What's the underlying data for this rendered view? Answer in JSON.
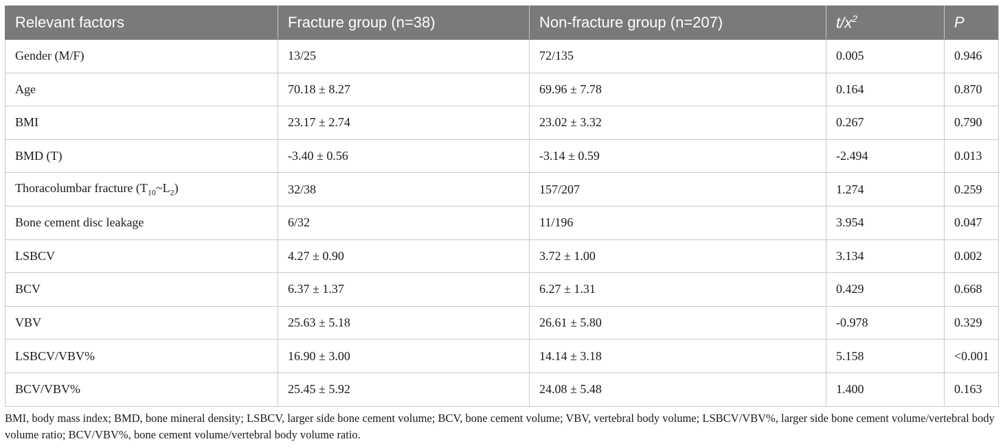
{
  "table": {
    "headers": {
      "factor": "Relevant factors",
      "fracture": "Fracture group (n=38)",
      "nonfracture": "Non-fracture group (n=207)",
      "stat_base": "t/x",
      "stat_sup": "2",
      "p": "P"
    },
    "rows": [
      {
        "factor": "Gender (M/F)",
        "fracture": "13/25",
        "nonfracture": "72/135",
        "stat": "0.005",
        "p": "0.946"
      },
      {
        "factor": "Age",
        "fracture": "70.18 ± 8.27",
        "nonfracture": "69.96 ± 7.78",
        "stat": "0.164",
        "p": "0.870"
      },
      {
        "factor": "BMI",
        "fracture": "23.17 ± 2.74",
        "nonfracture": "23.02 ± 3.32",
        "stat": "0.267",
        "p": "0.790"
      },
      {
        "factor": "BMD (T)",
        "fracture": "-3.40 ± 0.56",
        "nonfracture": "-3.14 ± 0.59",
        "stat": "-2.494",
        "p": "0.013"
      },
      {
        "factor_parts": {
          "a": "Thoracolumbar fracture (T",
          "b": "10",
          "c": "~L",
          "d": "2",
          "e": ")"
        },
        "fracture": "32/38",
        "nonfracture": "157/207",
        "stat": "1.274",
        "p": "0.259"
      },
      {
        "factor": "Bone cement disc leakage",
        "fracture": "6/32",
        "nonfracture": "11/196",
        "stat": "3.954",
        "p": "0.047"
      },
      {
        "factor": "LSBCV",
        "fracture": "4.27 ± 0.90",
        "nonfracture": "3.72 ± 1.00",
        "stat": "3.134",
        "p": "0.002"
      },
      {
        "factor": "BCV",
        "fracture": "6.37 ± 1.37",
        "nonfracture": "6.27 ± 1.31",
        "stat": "0.429",
        "p": "0.668"
      },
      {
        "factor": "VBV",
        "fracture": "25.63 ± 5.18",
        "nonfracture": "26.61 ± 5.80",
        "stat": "-0.978",
        "p": "0.329"
      },
      {
        "factor": "LSBCV/VBV%",
        "fracture": "16.90 ± 3.00",
        "nonfracture": "14.14 ± 3.18",
        "stat": "5.158",
        "p": "<0.001"
      },
      {
        "factor": "BCV/VBV%",
        "fracture": "25.45 ± 5.92",
        "nonfracture": "24.08 ± 5.48",
        "stat": "1.400",
        "p": "0.163"
      }
    ]
  },
  "footnote": "BMI, body mass index; BMD, bone mineral density; LSBCV, larger side bone cement volume; BCV, bone cement volume; VBV, vertebral body volume; LSBCV/VBV%, larger side bone cement volume/vertebral body volume ratio; BCV/VBV%, bone cement volume/vertebral body volume ratio."
}
